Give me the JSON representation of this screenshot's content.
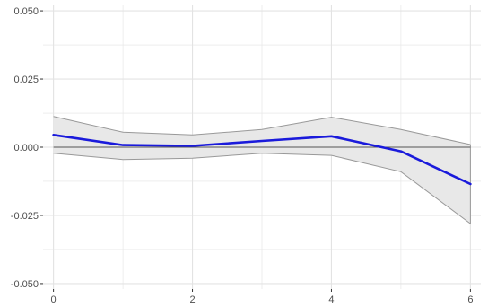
{
  "chart_data": {
    "type": "line",
    "title": "",
    "xlabel": "",
    "ylabel": "",
    "x": [
      0,
      1,
      2,
      3,
      4,
      5,
      6
    ],
    "series": [
      {
        "values": [
          0.0045,
          0.0008,
          0.0005,
          0.0023,
          0.004,
          -0.0015,
          -0.0135
        ],
        "lower": [
          -0.0022,
          -0.0045,
          -0.004,
          -0.0022,
          -0.003,
          -0.009,
          -0.028
        ],
        "upper": [
          0.0113,
          0.0055,
          0.0045,
          0.0065,
          0.011,
          0.0065,
          0.001
        ],
        "line_color": "#1a1adb",
        "band_fill": "#e8e8e8",
        "band_stroke": "#999999"
      }
    ],
    "reference_line": {
      "y": 0,
      "color": "#555555"
    },
    "xlim": [
      -0.15,
      6.15
    ],
    "ylim": [
      -0.052,
      0.052
    ],
    "x_ticks": [
      0,
      2,
      4,
      6
    ],
    "x_tick_labels": [
      "0",
      "2",
      "4",
      "6"
    ],
    "y_ticks": [
      -0.05,
      -0.025,
      0,
      0.025,
      0.05
    ],
    "y_tick_labels": [
      "-0.050",
      "-0.025",
      "0.000",
      "0.025",
      "0.050"
    ],
    "x_minor_grid": [
      1,
      3,
      5
    ],
    "y_minor_grid": [
      -0.0375,
      -0.0125,
      0.0125,
      0.0375
    ],
    "grid": true,
    "grid_color": "#e3e3e3",
    "legend": "none"
  }
}
